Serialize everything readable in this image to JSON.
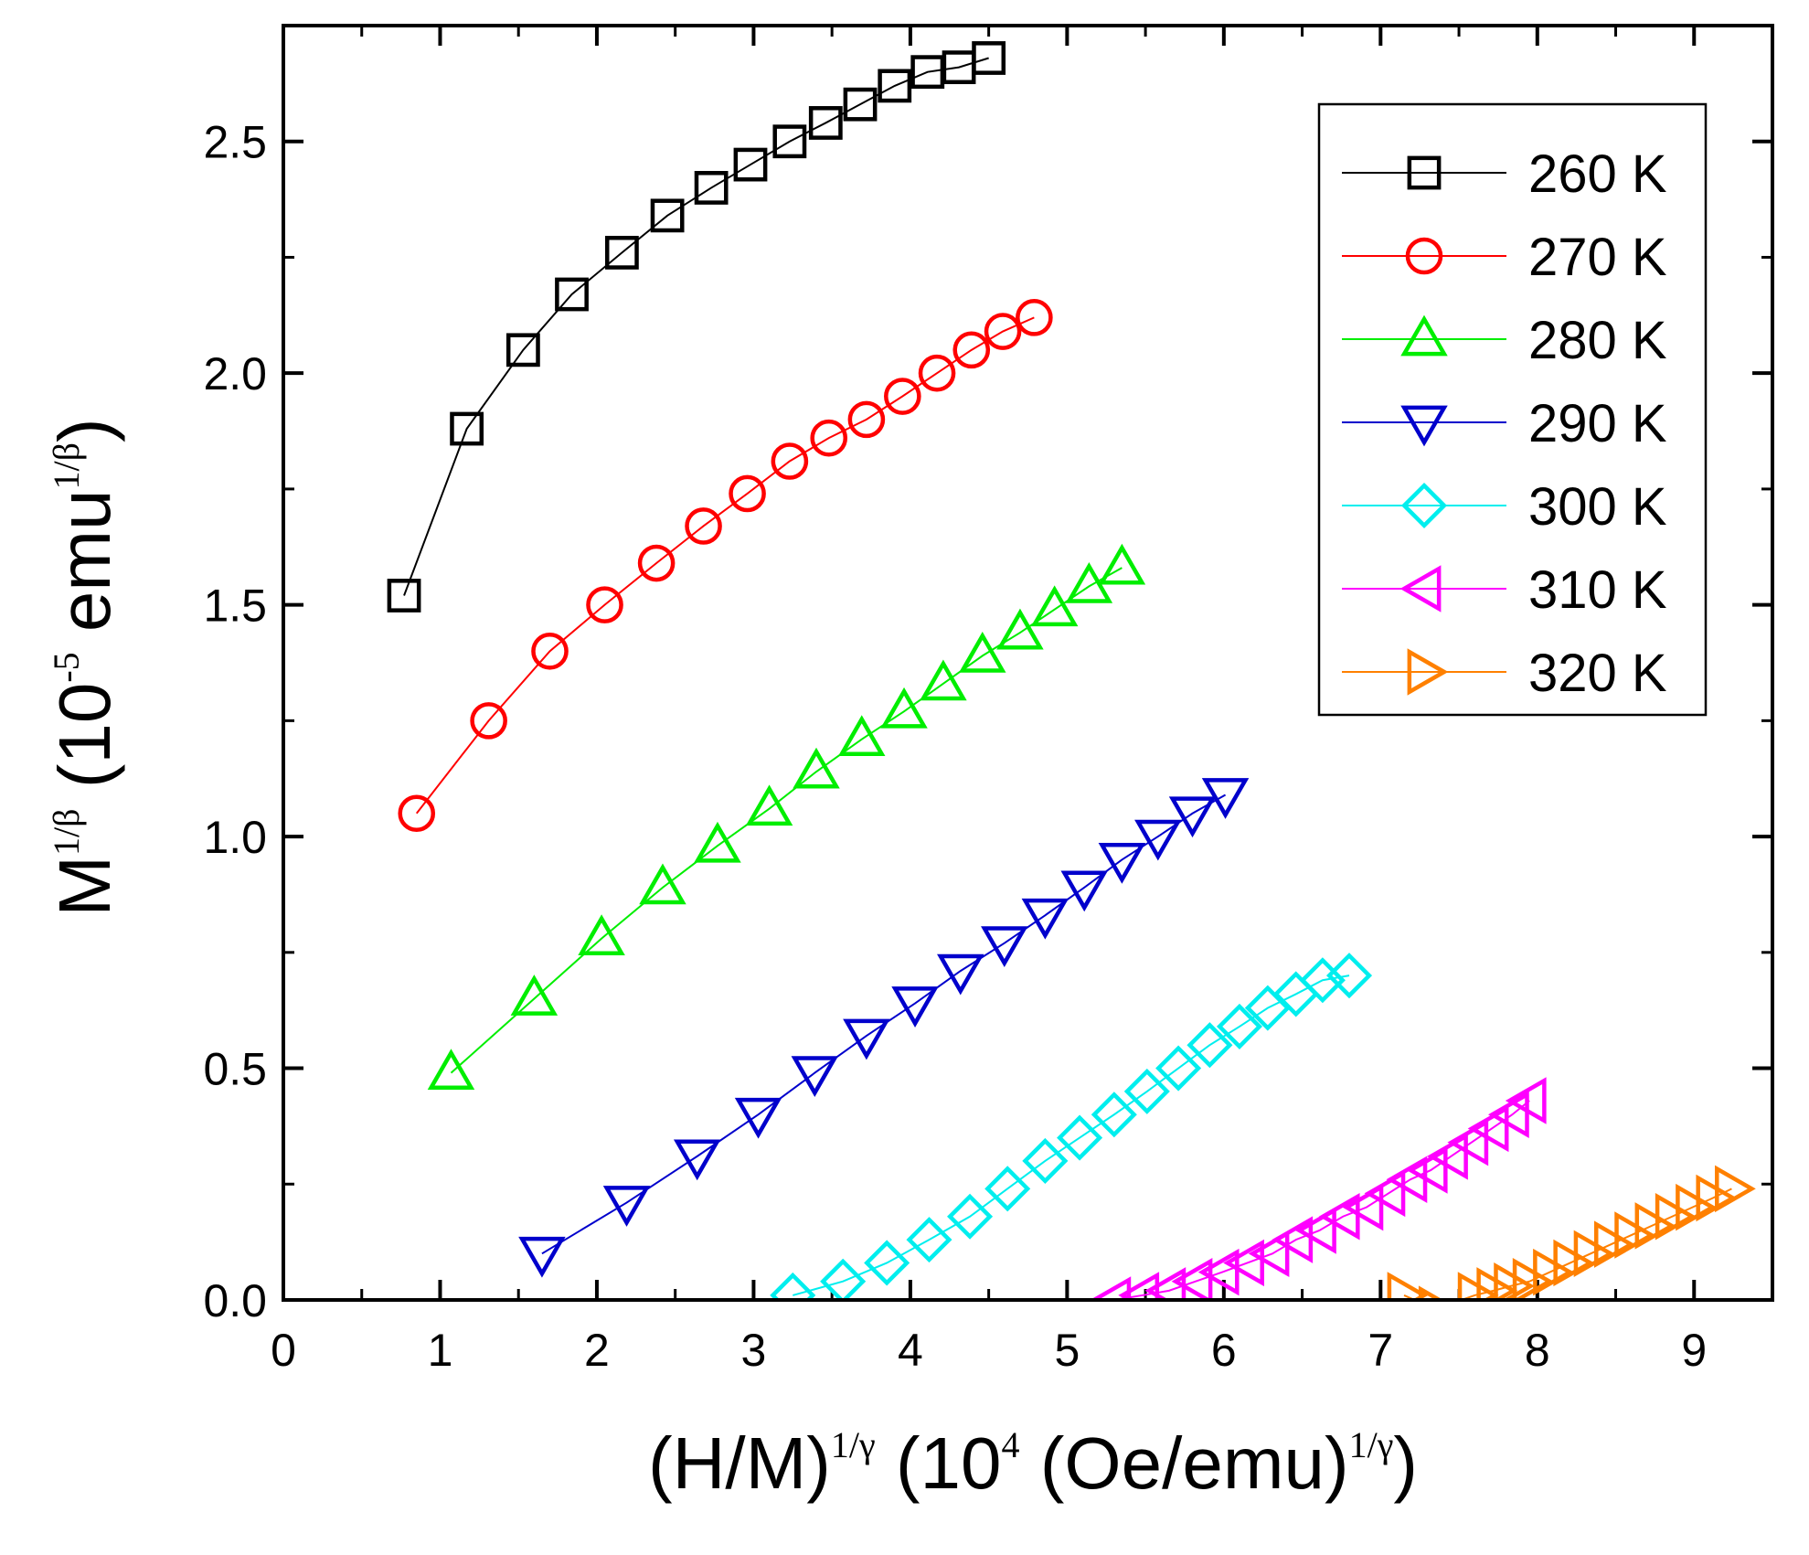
{
  "chart_data": {
    "type": "scatter",
    "title": "",
    "xlabel": {
      "prefix": "(H/M)",
      "sup1": "1/γ",
      "mid": " (10",
      "sup2": "4",
      "mid2": " (Oe/emu)",
      "sup3": "1/γ",
      "suffix": ")"
    },
    "ylabel": {
      "prefix": "M",
      "sup1": "1/β",
      "mid": " (10",
      "sup2": "-5",
      "mid2": " emu",
      "sup3": "1/β",
      "suffix": ")"
    },
    "xlim": [
      0,
      9.5
    ],
    "ylim": [
      0,
      2.75
    ],
    "x_ticks": [
      "0",
      "1",
      "2",
      "3",
      "4",
      "5",
      "6",
      "7",
      "8",
      "9"
    ],
    "y_ticks": [
      "0.0",
      "0.5",
      "1.0",
      "1.5",
      "2.0",
      "2.5"
    ],
    "legend_position": "top-right",
    "series": [
      {
        "name": "260 K",
        "color": "#000000",
        "marker": "square",
        "x": [
          0.77,
          1.17,
          1.53,
          1.84,
          2.16,
          2.45,
          2.73,
          2.98,
          3.23,
          3.46,
          3.68,
          3.9,
          4.11,
          4.31,
          4.5
        ],
        "y": [
          1.52,
          1.88,
          2.05,
          2.17,
          2.26,
          2.34,
          2.4,
          2.45,
          2.5,
          2.54,
          2.58,
          2.62,
          2.65,
          2.66,
          2.68
        ]
      },
      {
        "name": "270 K",
        "color": "#ff0000",
        "marker": "circle",
        "x": [
          0.85,
          1.31,
          1.7,
          2.05,
          2.38,
          2.68,
          2.96,
          3.23,
          3.48,
          3.72,
          3.95,
          4.17,
          4.39,
          4.59,
          4.79
        ],
        "y": [
          1.05,
          1.25,
          1.4,
          1.5,
          1.59,
          1.67,
          1.74,
          1.81,
          1.86,
          1.9,
          1.95,
          2.0,
          2.05,
          2.09,
          2.12
        ]
      },
      {
        "name": "280 K",
        "color": "#00ee00",
        "marker": "triangle-up",
        "x": [
          1.07,
          1.6,
          2.03,
          2.42,
          2.77,
          3.1,
          3.4,
          3.69,
          3.96,
          4.21,
          4.46,
          4.7,
          4.92,
          5.14,
          5.35
        ],
        "y": [
          0.49,
          0.65,
          0.78,
          0.89,
          0.98,
          1.06,
          1.14,
          1.21,
          1.27,
          1.33,
          1.39,
          1.44,
          1.49,
          1.54,
          1.58
        ]
      },
      {
        "name": "290 K",
        "color": "#0000cc",
        "marker": "triangle-down",
        "x": [
          1.65,
          2.19,
          2.64,
          3.03,
          3.39,
          3.72,
          4.03,
          4.32,
          4.6,
          4.86,
          5.11,
          5.35,
          5.58,
          5.8,
          6.01
        ],
        "y": [
          0.1,
          0.21,
          0.31,
          0.4,
          0.49,
          0.57,
          0.64,
          0.71,
          0.77,
          0.83,
          0.89,
          0.95,
          1.0,
          1.05,
          1.09
        ]
      },
      {
        "name": "300 K",
        "color": "#00eeee",
        "marker": "diamond",
        "x": [
          3.25,
          3.57,
          3.85,
          4.12,
          4.38,
          4.62,
          4.86,
          5.08,
          5.3,
          5.51,
          5.71,
          5.91,
          6.1,
          6.28,
          6.46,
          6.63,
          6.8
        ],
        "y": [
          0.01,
          0.04,
          0.08,
          0.13,
          0.18,
          0.24,
          0.3,
          0.35,
          0.4,
          0.45,
          0.5,
          0.55,
          0.59,
          0.63,
          0.66,
          0.69,
          0.7
        ]
      },
      {
        "name": "310 K",
        "color": "#ff00ff",
        "marker": "triangle-left",
        "x": [
          5.3,
          5.48,
          5.65,
          5.82,
          5.99,
          6.15,
          6.31,
          6.46,
          6.61,
          6.76,
          6.91,
          7.05,
          7.19,
          7.32,
          7.45,
          7.58,
          7.71,
          7.84,
          7.95
        ],
        "y": [
          0.0,
          0.01,
          0.02,
          0.04,
          0.06,
          0.08,
          0.1,
          0.13,
          0.15,
          0.18,
          0.2,
          0.23,
          0.26,
          0.28,
          0.31,
          0.34,
          0.37,
          0.4,
          0.43
        ]
      },
      {
        "name": "320 K",
        "color": "#ff8000",
        "marker": "triangle-right",
        "x": [
          7.15,
          7.35,
          7.6,
          7.72,
          7.83,
          7.95,
          8.08,
          8.21,
          8.34,
          8.47,
          8.6,
          8.73,
          8.86,
          8.99,
          9.12,
          9.24
        ],
        "y": [
          0.01,
          -0.02,
          0.01,
          0.02,
          0.03,
          0.04,
          0.06,
          0.08,
          0.1,
          0.12,
          0.14,
          0.16,
          0.18,
          0.2,
          0.22,
          0.24
        ]
      }
    ]
  }
}
